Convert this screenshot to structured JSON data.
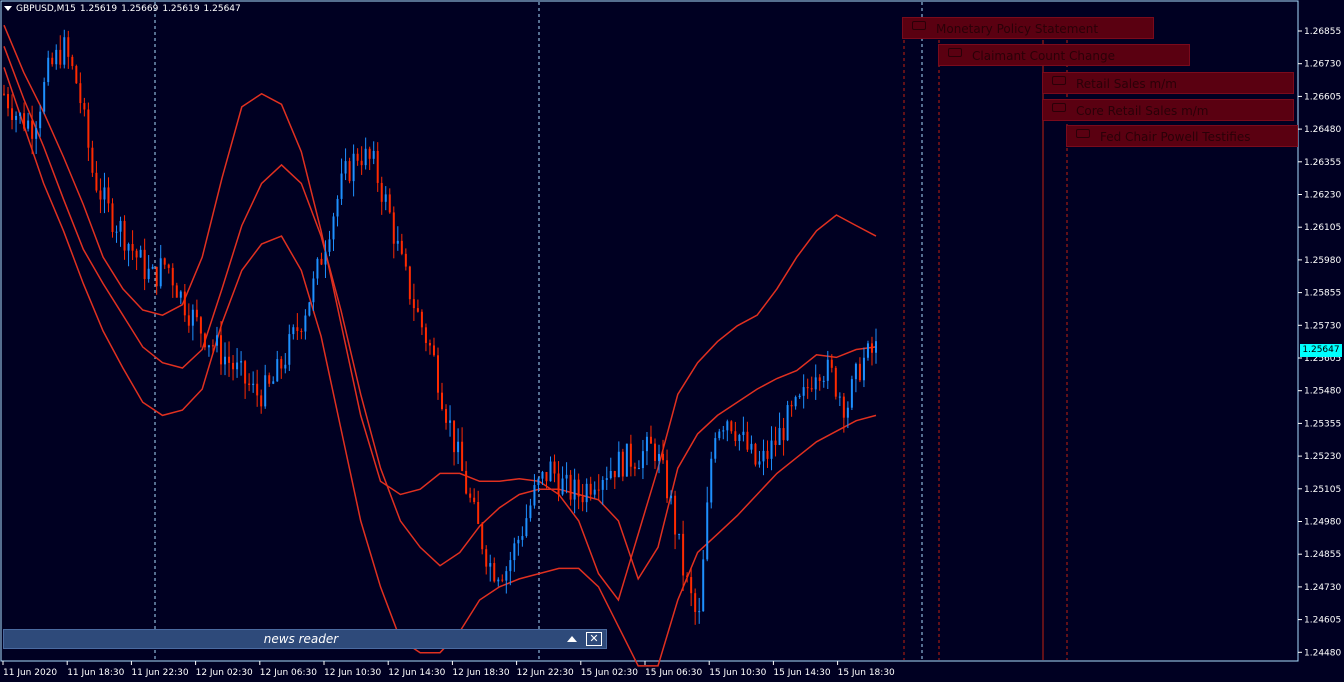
{
  "header": {
    "symbol": "GBPUSD,M15",
    "open": "1.25619",
    "high": "1.25669",
    "low": "1.25619",
    "close": "1.25647"
  },
  "current_price": "1.25647",
  "price_axis_labels": [
    "1.26855",
    "1.26730",
    "1.26605",
    "1.26480",
    "1.26355",
    "1.26230",
    "1.26105",
    "1.25980",
    "1.25855",
    "1.25730",
    "1.25605",
    "1.25480",
    "1.25355",
    "1.25230",
    "1.25105",
    "1.24980",
    "1.24855",
    "1.24730",
    "1.24605",
    "1.24480"
  ],
  "time_axis_labels": [
    "11 Jun 2020",
    "11 Jun 18:30",
    "11 Jun 22:30",
    "12 Jun 02:30",
    "12 Jun 06:30",
    "12 Jun 10:30",
    "12 Jun 14:30",
    "12 Jun 18:30",
    "12 Jun 22:30",
    "15 Jun 02:30",
    "15 Jun 06:30",
    "15 Jun 10:30",
    "15 Jun 14:30",
    "15 Jun 18:30"
  ],
  "news_events": [
    {
      "label": "Monetary Policy Statement"
    },
    {
      "label": "Claimant Count Change"
    },
    {
      "label": "Retail Sales m/m"
    },
    {
      "label": "Core Retail Sales m/m"
    },
    {
      "label": "Fed Chair Powell Testifies"
    }
  ],
  "news_reader": {
    "title": "news reader"
  },
  "colors": {
    "background": "#000022",
    "bull_candle": "#1e90ff",
    "bear_candle": "#ff2a00",
    "bands": "#e03020",
    "grid_dashed": "#aaddff",
    "event_box": "#5a0011",
    "price_tag": "#00ffff"
  },
  "chart_data": {
    "type": "candlestick",
    "title": "GBPUSD,M15",
    "y_range": [
      1.2448,
      1.2693
    ],
    "price_path": [
      1.2662,
      1.2653,
      1.265,
      1.267,
      1.268,
      1.2665,
      1.2632,
      1.2618,
      1.261,
      1.26,
      1.2592,
      1.2598,
      1.2585,
      1.2575,
      1.2568,
      1.2562,
      1.2555,
      1.2548,
      1.255,
      1.2562,
      1.2575,
      1.259,
      1.2612,
      1.263,
      1.264,
      1.2635,
      1.2618,
      1.2595,
      1.2578,
      1.2563,
      1.254,
      1.2518,
      1.2498,
      1.2482,
      1.2482,
      1.2496,
      1.2512,
      1.252,
      1.2512,
      1.251,
      1.2517,
      1.252,
      1.2523,
      1.2525,
      1.2528,
      1.251,
      1.248,
      1.246,
      1.2535,
      1.254,
      1.253,
      1.252,
      1.2528,
      1.2538,
      1.2545,
      1.256,
      1.2555,
      1.2543,
      1.256,
      1.2565
    ],
    "band_upper": [
      1.2688,
      1.267,
      1.2655,
      1.2638,
      1.262,
      1.26,
      1.2588,
      1.258,
      1.2578,
      1.2582,
      1.26,
      1.263,
      1.2657,
      1.2662,
      1.2658,
      1.264,
      1.261,
      1.2575,
      1.254,
      1.2515,
      1.251,
      1.2512,
      1.2518,
      1.2518,
      1.2515,
      1.2515,
      1.2516,
      1.2515,
      1.251,
      1.25,
      1.248,
      1.247,
      1.2495,
      1.252,
      1.2548,
      1.256,
      1.2568,
      1.2574,
      1.2578,
      1.2588,
      1.26,
      1.261,
      1.2616,
      1.2612,
      1.2608
    ],
    "band_middle": [
      1.268,
      1.266,
      1.2642,
      1.2622,
      1.2603,
      1.259,
      1.2578,
      1.2566,
      1.256,
      1.2558,
      1.2565,
      1.2588,
      1.2612,
      1.2628,
      1.2635,
      1.2628,
      1.2608,
      1.258,
      1.2548,
      1.252,
      1.25,
      1.249,
      1.2483,
      1.2488,
      1.2498,
      1.2505,
      1.251,
      1.2512,
      1.2512,
      1.251,
      1.2508,
      1.25,
      1.2478,
      1.249,
      1.252,
      1.2533,
      1.254,
      1.2545,
      1.255,
      1.2554,
      1.2557,
      1.2563,
      1.2562,
      1.2565,
      1.2566
    ],
    "band_lower": [
      1.2672,
      1.265,
      1.2628,
      1.261,
      1.259,
      1.2572,
      1.2558,
      1.2545,
      1.254,
      1.2542,
      1.255,
      1.2575,
      1.2595,
      1.2605,
      1.2608,
      1.2595,
      1.257,
      1.2535,
      1.25,
      1.2475,
      1.2455,
      1.245,
      1.245,
      1.2458,
      1.247,
      1.2475,
      1.2478,
      1.248,
      1.2482,
      1.2482,
      1.2475,
      1.246,
      1.2445,
      1.2445,
      1.247,
      1.2488,
      1.2495,
      1.2502,
      1.251,
      1.2518,
      1.2524,
      1.253,
      1.2534,
      1.2538,
      1.254
    ]
  }
}
